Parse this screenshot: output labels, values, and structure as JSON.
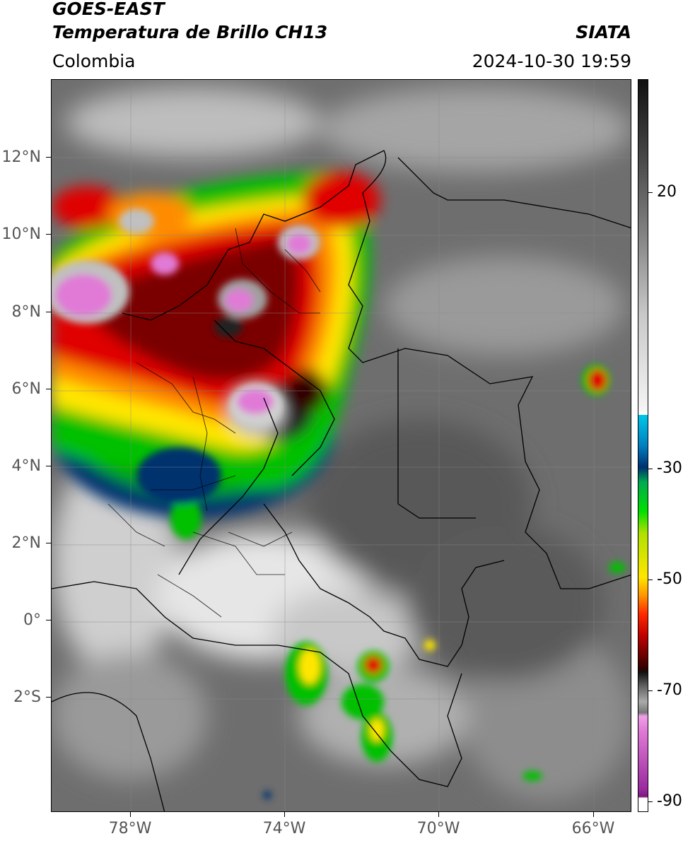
{
  "header": {
    "satellite": "GOES-EAST",
    "product": "Temperatura de Brillo CH13",
    "agency": "SIATA",
    "region": "Colombia",
    "datetime": "2024-10-30 19:59"
  },
  "map": {
    "lat_labels": [
      "12°N",
      "10°N",
      "8°N",
      "6°N",
      "4°N",
      "2°N",
      "0°",
      "2°S"
    ],
    "lon_labels": [
      "78°W",
      "74°W",
      "70°W",
      "66°W"
    ]
  },
  "colorbar": {
    "labels": [
      "20",
      "-30",
      "-50",
      "-70",
      "-90"
    ],
    "palette": [
      "#ffffff",
      "#9b2a9e",
      "#e07ad6",
      "#b0b0b0",
      "#202020",
      "#6b0000",
      "#e00000",
      "#ffa500",
      "#ffe600",
      "#00c000",
      "#00306e",
      "#00c8e8",
      "#ffffff",
      "#111111"
    ]
  }
}
